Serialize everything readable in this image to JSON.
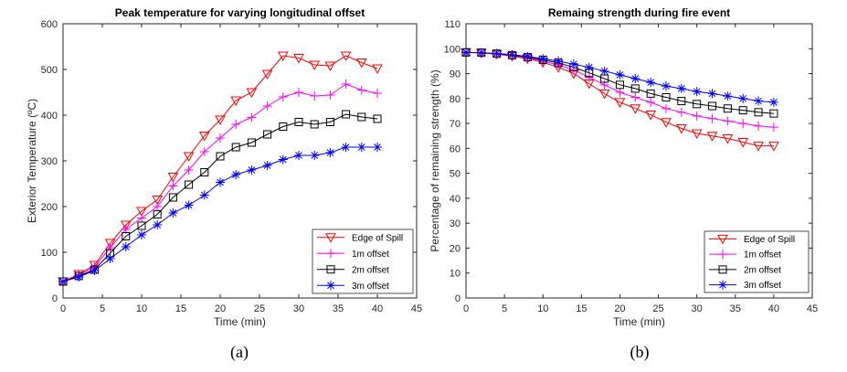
{
  "chart_data": [
    {
      "type": "line",
      "title": "Peak temperature for varying longitudinal offset",
      "xlabel": "Time (min)",
      "ylabel": "Exterior Temperature (ºC)",
      "caption": "(a)",
      "xlim": [
        0,
        45
      ],
      "ylim": [
        0,
        600
      ],
      "xticks": [
        0,
        5,
        10,
        15,
        20,
        25,
        30,
        35,
        40,
        45
      ],
      "yticks": [
        0,
        100,
        200,
        300,
        400,
        500,
        600
      ],
      "legend_position": "bottom-right",
      "series": [
        {
          "name": "Edge of Spill",
          "color": "#ff0000",
          "marker": "triangle-down",
          "x": [
            0,
            2,
            4,
            6,
            8,
            10,
            12,
            14,
            16,
            18,
            20,
            22,
            24,
            26,
            28,
            30,
            32,
            34,
            36,
            38,
            40
          ],
          "values": [
            36,
            52,
            72,
            120,
            160,
            190,
            215,
            265,
            310,
            355,
            390,
            432,
            450,
            490,
            530,
            525,
            510,
            508,
            530,
            515,
            502
          ]
        },
        {
          "name": "1m offset",
          "color": "#ff00ff",
          "marker": "plus",
          "x": [
            0,
            2,
            4,
            6,
            8,
            10,
            12,
            14,
            16,
            18,
            20,
            22,
            24,
            26,
            28,
            30,
            32,
            34,
            36,
            38,
            40
          ],
          "values": [
            36,
            50,
            68,
            110,
            150,
            175,
            200,
            245,
            280,
            320,
            350,
            380,
            395,
            420,
            440,
            450,
            442,
            444,
            468,
            455,
            448
          ]
        },
        {
          "name": "2m offset",
          "color": "#000000",
          "marker": "square",
          "x": [
            0,
            2,
            4,
            6,
            8,
            10,
            12,
            14,
            16,
            18,
            20,
            22,
            24,
            26,
            28,
            30,
            32,
            34,
            36,
            38,
            40
          ],
          "values": [
            36,
            48,
            62,
            98,
            135,
            158,
            183,
            220,
            248,
            275,
            310,
            330,
            340,
            358,
            375,
            385,
            380,
            385,
            402,
            396,
            392
          ]
        },
        {
          "name": "3m offset",
          "color": "#0000ff",
          "marker": "asterisk",
          "x": [
            0,
            2,
            4,
            6,
            8,
            10,
            12,
            14,
            16,
            18,
            20,
            22,
            24,
            26,
            28,
            30,
            32,
            34,
            36,
            38,
            40
          ],
          "values": [
            36,
            46,
            60,
            86,
            112,
            138,
            160,
            186,
            203,
            225,
            253,
            270,
            280,
            290,
            303,
            312,
            312,
            318,
            330,
            330,
            330
          ]
        }
      ]
    },
    {
      "type": "line",
      "title": "Remaing strength during fire event",
      "xlabel": "Time (min)",
      "ylabel": "Percentage of remaining strength (%)",
      "caption": "(b)",
      "xlim": [
        0,
        45
      ],
      "ylim": [
        0,
        110
      ],
      "xticks": [
        0,
        5,
        10,
        15,
        20,
        25,
        30,
        35,
        40,
        45
      ],
      "yticks": [
        0,
        10,
        20,
        30,
        40,
        50,
        60,
        70,
        80,
        90,
        100,
        110
      ],
      "legend_position": "bottom-right",
      "series": [
        {
          "name": "Edge of Spill",
          "color": "#ff0000",
          "marker": "triangle-down",
          "x": [
            0,
            2,
            4,
            6,
            8,
            10,
            12,
            14,
            16,
            18,
            20,
            22,
            24,
            26,
            28,
            30,
            32,
            34,
            36,
            38,
            40
          ],
          "values": [
            98.5,
            98.3,
            97.8,
            97,
            96,
            94.5,
            92.5,
            90,
            86,
            82,
            78.5,
            76,
            73.5,
            70.5,
            68,
            66,
            65,
            64,
            62.5,
            61,
            61
          ]
        },
        {
          "name": "1m offset",
          "color": "#ff00ff",
          "marker": "plus",
          "x": [
            0,
            2,
            4,
            6,
            8,
            10,
            12,
            14,
            16,
            18,
            20,
            22,
            24,
            26,
            28,
            30,
            32,
            34,
            36,
            38,
            40
          ],
          "values": [
            98.5,
            98.3,
            97.8,
            97.2,
            96.3,
            95,
            93.5,
            91.5,
            88.5,
            85.5,
            82.5,
            80.5,
            78.5,
            76,
            74.5,
            73,
            72,
            71,
            70,
            69,
            68.5
          ]
        },
        {
          "name": "2m offset",
          "color": "#000000",
          "marker": "square",
          "x": [
            0,
            2,
            4,
            6,
            8,
            10,
            12,
            14,
            16,
            18,
            20,
            22,
            24,
            26,
            28,
            30,
            32,
            34,
            36,
            38,
            40
          ],
          "values": [
            98.5,
            98.4,
            98,
            97.4,
            96.6,
            95.5,
            94.3,
            92.5,
            90.3,
            88,
            85.5,
            84,
            82,
            80.5,
            79,
            77.8,
            77,
            76,
            75.3,
            74.5,
            74
          ]
        },
        {
          "name": "3m offset",
          "color": "#0000ff",
          "marker": "asterisk",
          "x": [
            0,
            2,
            4,
            6,
            8,
            10,
            12,
            14,
            16,
            18,
            20,
            22,
            24,
            26,
            28,
            30,
            32,
            34,
            36,
            38,
            40
          ],
          "values": [
            98.5,
            98.4,
            98.1,
            97.6,
            96.9,
            96,
            95,
            93.8,
            92.5,
            91,
            89.5,
            88,
            86.5,
            85,
            84,
            82.8,
            82,
            81,
            80,
            79,
            78.5
          ]
        }
      ]
    }
  ]
}
